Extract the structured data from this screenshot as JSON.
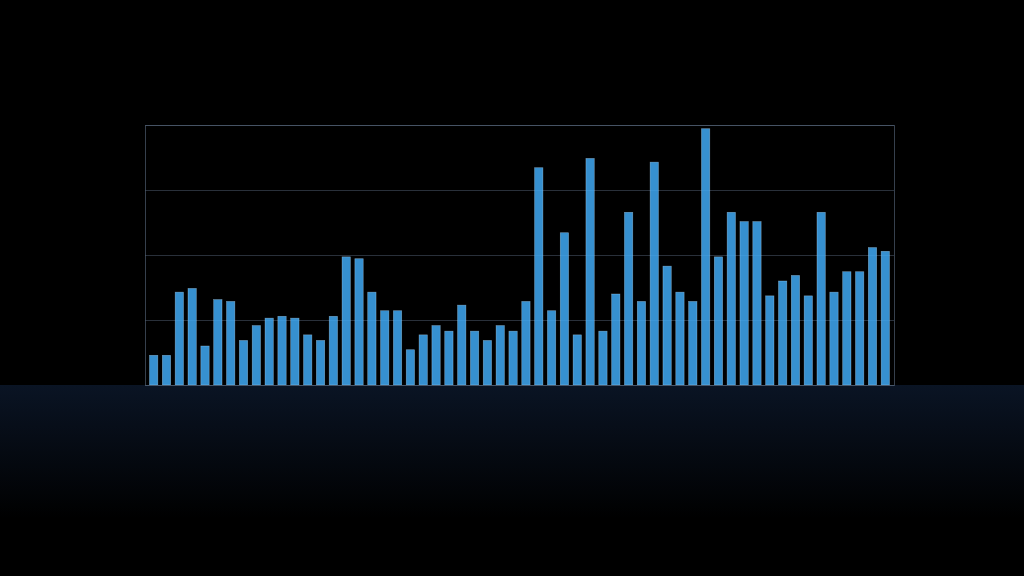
{
  "chart_data": {
    "type": "bar",
    "categories": [
      null,
      null,
      null,
      null,
      null,
      null,
      null,
      null,
      null,
      null,
      null,
      null,
      null,
      null,
      null,
      null,
      null,
      null,
      null,
      null,
      null,
      null,
      null,
      null,
      null,
      null,
      null,
      null,
      null,
      null,
      null,
      null,
      null,
      null,
      null,
      null,
      null,
      null,
      null,
      null,
      null,
      null,
      null,
      null,
      null,
      null,
      null,
      null,
      null,
      null,
      null,
      null,
      null,
      null,
      null,
      null,
      null,
      null
    ],
    "values": [
      16,
      16,
      50,
      52,
      21,
      46,
      45,
      24,
      32,
      36,
      37,
      36,
      27,
      24,
      37,
      69,
      68,
      50,
      40,
      40,
      19,
      27,
      32,
      29,
      43,
      29,
      24,
      32,
      29,
      45,
      117,
      40,
      82,
      27,
      122,
      29,
      49,
      93,
      45,
      120,
      64,
      50,
      45,
      138,
      69,
      93,
      88,
      88,
      48,
      56,
      59,
      48,
      93,
      50,
      61,
      61,
      74,
      72
    ],
    "color": "#3fa9f5",
    "ylim": [
      0,
      140
    ],
    "yticks": [
      0,
      35,
      70,
      105,
      140
    ],
    "grid": true,
    "tick_labels": false
  }
}
